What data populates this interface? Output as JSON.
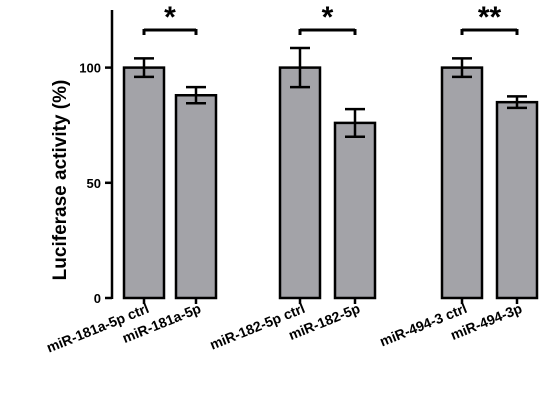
{
  "chart_data": {
    "type": "bar",
    "ylabel": "Luciferase activity (%)",
    "xlabel": "",
    "title": "",
    "ylim": [
      0,
      125
    ],
    "yticks": [
      0,
      50,
      100
    ],
    "categories": [
      "miR-181a-5p ctrl",
      "miR-181a-5p",
      "miR-182-5p ctrl",
      "miR-182-5p",
      "miR-494-3 ctrl",
      "miR-494-3p"
    ],
    "values": [
      100,
      88,
      100,
      76,
      100,
      85
    ],
    "errors": [
      4,
      3.5,
      8.5,
      6,
      4,
      2.5
    ],
    "bar_color": "#a3a3a8",
    "significance": [
      {
        "pair": [
          0,
          1
        ],
        "label": "*"
      },
      {
        "pair": [
          2,
          3
        ],
        "label": "*"
      },
      {
        "pair": [
          4,
          5
        ],
        "label": "**"
      }
    ]
  }
}
